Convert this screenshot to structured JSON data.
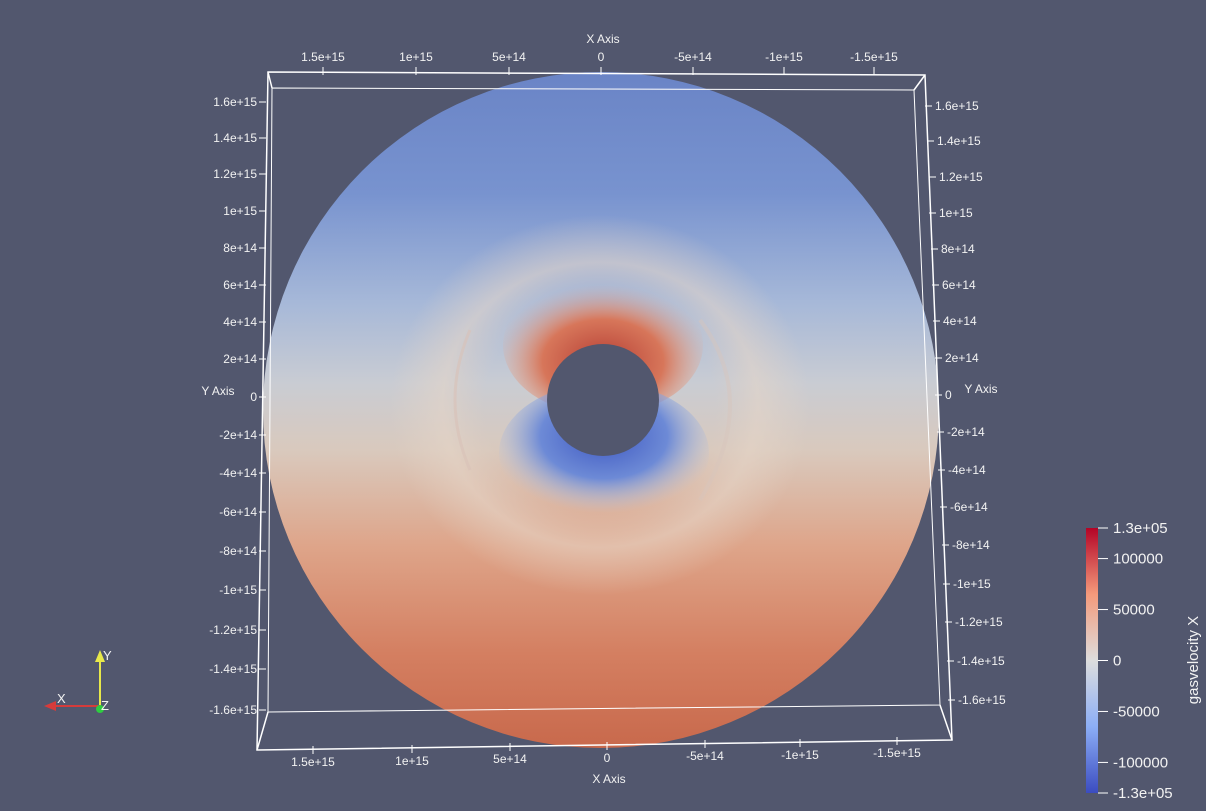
{
  "chart_data": {
    "type": "heatmap",
    "variable": "gasvelocity X",
    "colormap": [
      "#3b4cc0",
      "#8caef6",
      "#dddddd",
      "#f49a7b",
      "#b40426"
    ],
    "range": [
      -130000,
      130000
    ],
    "colorbar": {
      "title": "gasvelocity X",
      "labels": [
        "1.3e+05",
        "100000",
        "50000",
        "0",
        "-50000",
        "-100000",
        "-1.3e+05"
      ]
    },
    "axes": {
      "top_x": {
        "title": "X Axis",
        "ticks": [
          "1.5e+15",
          "1e+15",
          "5e+14",
          "0",
          "-5e+14",
          "-1e+15",
          "-1.5e+15"
        ]
      },
      "bottom_x": {
        "title": "X Axis",
        "ticks": [
          "1.5e+15",
          "1e+15",
          "5e+14",
          "0",
          "-5e+14",
          "-1e+15",
          "-1.5e+15"
        ]
      },
      "left_y": {
        "title": "Y Axis",
        "ticks": [
          "1.6e+15",
          "1.4e+15",
          "1.2e+15",
          "1e+15",
          "8e+14",
          "6e+14",
          "4e+14",
          "2e+14",
          "0",
          "-2e+14",
          "-4e+14",
          "-6e+14",
          "-8e+14",
          "-1e+15",
          "-1.2e+15",
          "-1.4e+15",
          "-1.6e+15"
        ]
      },
      "right_y": {
        "title": "Y Axis",
        "ticks": [
          "1.6e+15",
          "1.4e+15",
          "1.2e+15",
          "1e+15",
          "8e+14",
          "6e+14",
          "4e+14",
          "2e+14",
          "0",
          "-2e+14",
          "-4e+14",
          "-6e+14",
          "-8e+14",
          "-1e+15",
          "-1.2e+15",
          "-1.4e+15",
          "-1.6e+15"
        ]
      }
    },
    "orientation_triad": {
      "x": "X",
      "y": "Y",
      "z": "Z"
    }
  }
}
